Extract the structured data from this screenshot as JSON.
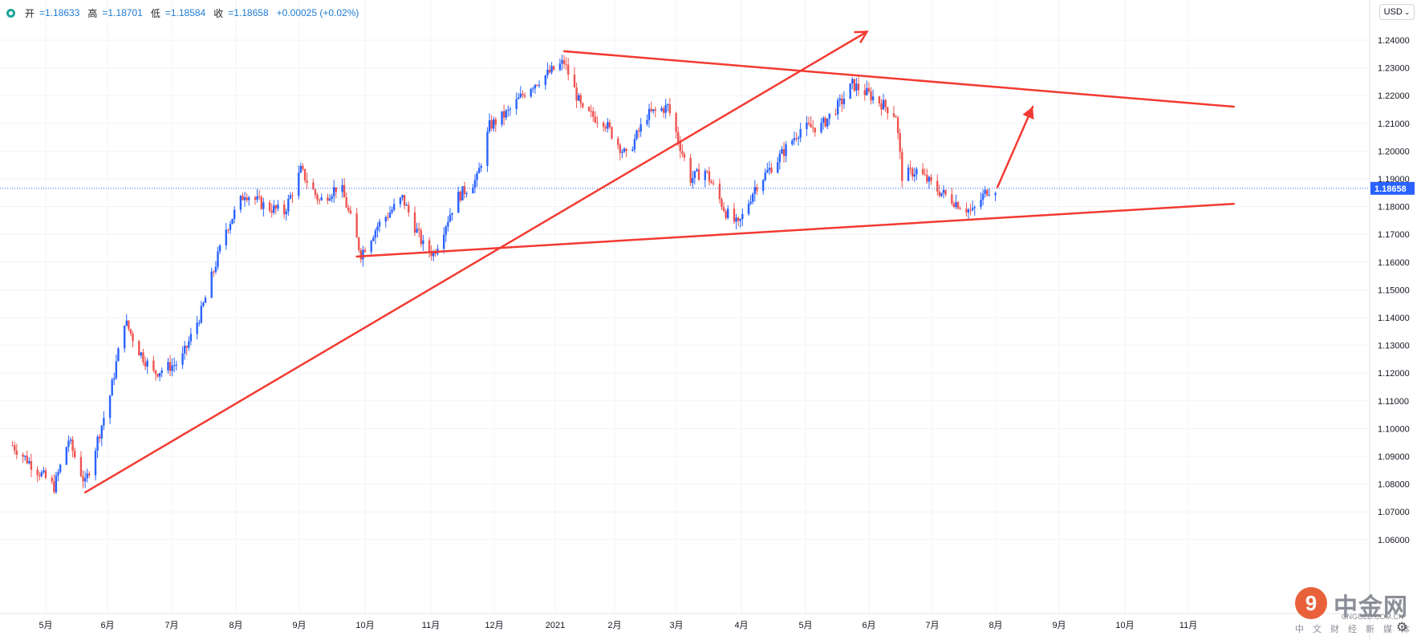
{
  "legend": {
    "open_label": "开",
    "open_value": "=1.18633",
    "high_label": "高",
    "high_value": "=1.18701",
    "low_label": "低",
    "low_value": "=1.18584",
    "close_label": "收",
    "close_value": "=1.18658",
    "change": "+0.00025 (+0.02%)"
  },
  "currency_button": "USD",
  "watermark": {
    "logo_mark": "9",
    "name": "中金网",
    "url": "CNGOLD.COM.CN",
    "sub": "中文财经新媒体"
  },
  "colors": {
    "up": "#2962ff",
    "down": "#ef5350",
    "annotation": "#f23a32",
    "grid": "#f0f3fa",
    "price_tag": "#2962ff"
  },
  "chart_data": {
    "type": "candlestick",
    "y_ticks": [
      "1.06000",
      "1.07000",
      "1.08000",
      "1.09000",
      "1.10000",
      "1.11000",
      "1.12000",
      "1.13000",
      "1.14000",
      "1.15000",
      "1.16000",
      "1.17000",
      "1.18000",
      "1.19000",
      "1.20000",
      "1.21000",
      "1.22000",
      "1.23000",
      "1.24000"
    ],
    "ylim": [
      1.0581,
      1.2439
    ],
    "x_labels": [
      "5月",
      "6月",
      "7月",
      "8月",
      "9月",
      "10月",
      "11月",
      "12月",
      "2021",
      "2月",
      "3月",
      "4月",
      "5月",
      "6月",
      "7月",
      "8月",
      "9月",
      "10月",
      "11月"
    ],
    "last_price": "1.18658",
    "price_path": [
      [
        "2020-04-15",
        1.094
      ],
      [
        "2020-05-05",
        1.079
      ],
      [
        "2020-05-12",
        1.096
      ],
      [
        "2020-05-20",
        1.08
      ],
      [
        "2020-06-01",
        1.112
      ],
      [
        "2020-06-08",
        1.139
      ],
      [
        "2020-06-15",
        1.128
      ],
      [
        "2020-06-22",
        1.12
      ],
      [
        "2020-07-05",
        1.124
      ],
      [
        "2020-07-15",
        1.142
      ],
      [
        "2020-07-27",
        1.172
      ],
      [
        "2020-08-05",
        1.185
      ],
      [
        "2020-08-15",
        1.18
      ],
      [
        "2020-08-24",
        1.178
      ],
      [
        "2020-09-01",
        1.193
      ],
      [
        "2020-09-10",
        1.182
      ],
      [
        "2020-09-20",
        1.188
      ],
      [
        "2020-09-30",
        1.163
      ],
      [
        "2020-10-08",
        1.173
      ],
      [
        "2020-10-20",
        1.183
      ],
      [
        "2020-10-30",
        1.166
      ],
      [
        "2020-11-04",
        1.163
      ],
      [
        "2020-11-15",
        1.183
      ],
      [
        "2020-11-25",
        1.19
      ],
      [
        "2020-12-01",
        1.209
      ],
      [
        "2020-12-10",
        1.214
      ],
      [
        "2020-12-20",
        1.223
      ],
      [
        "2021-01-06",
        1.232
      ],
      [
        "2021-01-15",
        1.214
      ],
      [
        "2021-01-25",
        1.211
      ],
      [
        "2021-02-05",
        1.198
      ],
      [
        "2021-02-15",
        1.213
      ],
      [
        "2021-02-25",
        1.216
      ],
      [
        "2021-03-08",
        1.19
      ],
      [
        "2021-03-15",
        1.193
      ],
      [
        "2021-03-25",
        1.178
      ],
      [
        "2021-03-31",
        1.173
      ],
      [
        "2021-04-08",
        1.187
      ],
      [
        "2021-04-20",
        1.198
      ],
      [
        "2021-04-30",
        1.208
      ],
      [
        "2021-05-10",
        1.209
      ],
      [
        "2021-05-20",
        1.218
      ],
      [
        "2021-05-25",
        1.224
      ],
      [
        "2021-06-05",
        1.219
      ],
      [
        "2021-06-15",
        1.213
      ],
      [
        "2021-06-18",
        1.191
      ],
      [
        "2021-06-25",
        1.193
      ],
      [
        "2021-07-05",
        1.186
      ],
      [
        "2021-07-15",
        1.181
      ],
      [
        "2021-07-22",
        1.178
      ],
      [
        "2021-07-29",
        1.186
      ],
      [
        "2021-08-02",
        1.1866
      ]
    ],
    "annotations": [
      {
        "kind": "line",
        "points": [
          [
            "2020-05-20",
            1.077
          ],
          [
            "2021-06-01",
            1.243
          ]
        ],
        "arrow": true
      },
      {
        "kind": "line",
        "points": [
          [
            "2021-01-06",
            1.236
          ],
          [
            "2021-11-25",
            1.216
          ]
        ]
      },
      {
        "kind": "line",
        "points": [
          [
            "2020-09-28",
            1.162
          ],
          [
            "2021-11-25",
            1.181
          ]
        ]
      },
      {
        "kind": "line",
        "points": [
          [
            "2021-08-03",
            1.187
          ],
          [
            "2021-08-20",
            1.216
          ]
        ],
        "arrow": true
      }
    ]
  }
}
